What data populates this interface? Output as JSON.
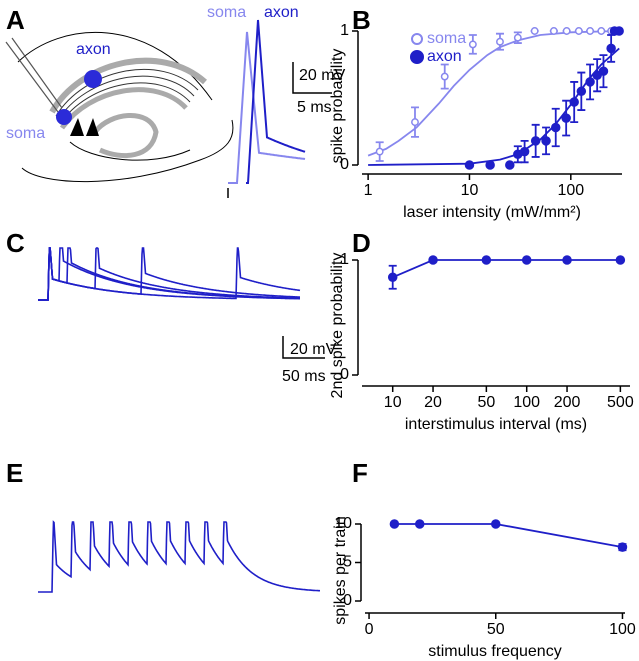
{
  "figure": {
    "panel_labels": [
      "A",
      "B",
      "C",
      "D",
      "E",
      "F"
    ],
    "panel_a": {
      "diagram_labels": [
        "axon",
        "soma"
      ],
      "trace_labels": [
        "soma",
        "axon"
      ],
      "scale_bar": [
        "20 mV",
        "5 ms"
      ]
    },
    "panel_c": {
      "scale_bar": [
        "20 mV",
        "50 ms"
      ]
    }
  },
  "chart_data": [
    {
      "type": "scatter",
      "xlabel": "laser intensity (mW/mm²)",
      "ylabel": "spike probability",
      "xscale": "log",
      "xlim": [
        0.87,
        320
      ],
      "xticks": [
        1,
        10,
        100
      ],
      "ylim": [
        0,
        1
      ],
      "yticks": [
        0,
        1
      ],
      "legend": "upper left",
      "series": [
        {
          "name": "soma",
          "color": "#8787ee",
          "marker": "open",
          "x": [
            1.3,
            2.9,
            5.7,
            10.8,
            20,
            30,
            44,
            68,
            91,
            120,
            155,
            200,
            250,
            300
          ],
          "values": [
            0.1,
            0.32,
            0.66,
            0.9,
            0.92,
            0.95,
            1,
            1,
            1,
            1,
            1,
            1,
            1,
            1
          ],
          "errors": [
            0.07,
            0.11,
            0.09,
            0.07,
            0.06,
            0.04,
            0,
            0,
            0,
            0,
            0,
            0,
            0,
            0
          ],
          "fit": {
            "x": [
              1,
              1.5,
              2,
              3,
              5,
              7,
              10,
              15,
              20,
              30,
              50,
              100,
              300
            ],
            "values": [
              0.07,
              0.12,
              0.18,
              0.28,
              0.46,
              0.59,
              0.71,
              0.82,
              0.88,
              0.93,
              0.97,
              0.99,
              1
            ]
          }
        },
        {
          "name": "axon",
          "color": "#1f1fc8",
          "marker": "filled",
          "x": [
            10,
            16,
            25,
            30,
            35,
            45,
            57,
            71,
            90,
            108,
            127,
            155,
            182,
            210,
            250,
            270,
            300
          ],
          "values": [
            0,
            0,
            0,
            0.08,
            0.1,
            0.18,
            0.18,
            0.28,
            0.35,
            0.47,
            0.55,
            0.62,
            0.67,
            0.7,
            0.87,
            1,
            1
          ],
          "errors": [
            0,
            0,
            0,
            0.06,
            0.08,
            0.12,
            0.1,
            0.14,
            0.13,
            0.15,
            0.14,
            0.13,
            0.12,
            0.12,
            0.1,
            0,
            0
          ],
          "fit": {
            "x": [
              1,
              10,
              20,
              30,
              50,
              70,
              100,
              150,
              200,
              300
            ],
            "values": [
              0,
              0.01,
              0.04,
              0.08,
              0.19,
              0.3,
              0.45,
              0.64,
              0.75,
              0.87
            ]
          }
        }
      ]
    },
    {
      "type": "line",
      "xlabel": "interstimulus interval (ms)",
      "ylabel": "2nd spike probability",
      "xscale": "log",
      "xlim": [
        5.9,
        590
      ],
      "xticks": [
        10,
        20,
        50,
        100,
        200,
        500
      ],
      "ylim": [
        0,
        1
      ],
      "yticks": [
        0,
        1
      ],
      "series": [
        {
          "color": "#1f1fc8",
          "x": [
            10,
            20,
            50,
            100,
            200,
            500
          ],
          "values": [
            0.85,
            1,
            1,
            1,
            1,
            1
          ],
          "errors": [
            0.1,
            0,
            0,
            0,
            0,
            0
          ]
        }
      ]
    },
    {
      "type": "line",
      "xlabel": "stimulus frequency",
      "ylabel": "spikes per train",
      "xlim": [
        -1.6,
        101
      ],
      "xticks": [
        0,
        50,
        100
      ],
      "ylim": [
        0,
        10
      ],
      "yticks": [
        0,
        5,
        10
      ],
      "series": [
        {
          "color": "#1f1fc8",
          "x": [
            10,
            20,
            50,
            100
          ],
          "values": [
            10,
            10,
            10,
            7
          ],
          "errors": [
            0,
            0,
            0,
            0.4
          ]
        }
      ]
    }
  ]
}
